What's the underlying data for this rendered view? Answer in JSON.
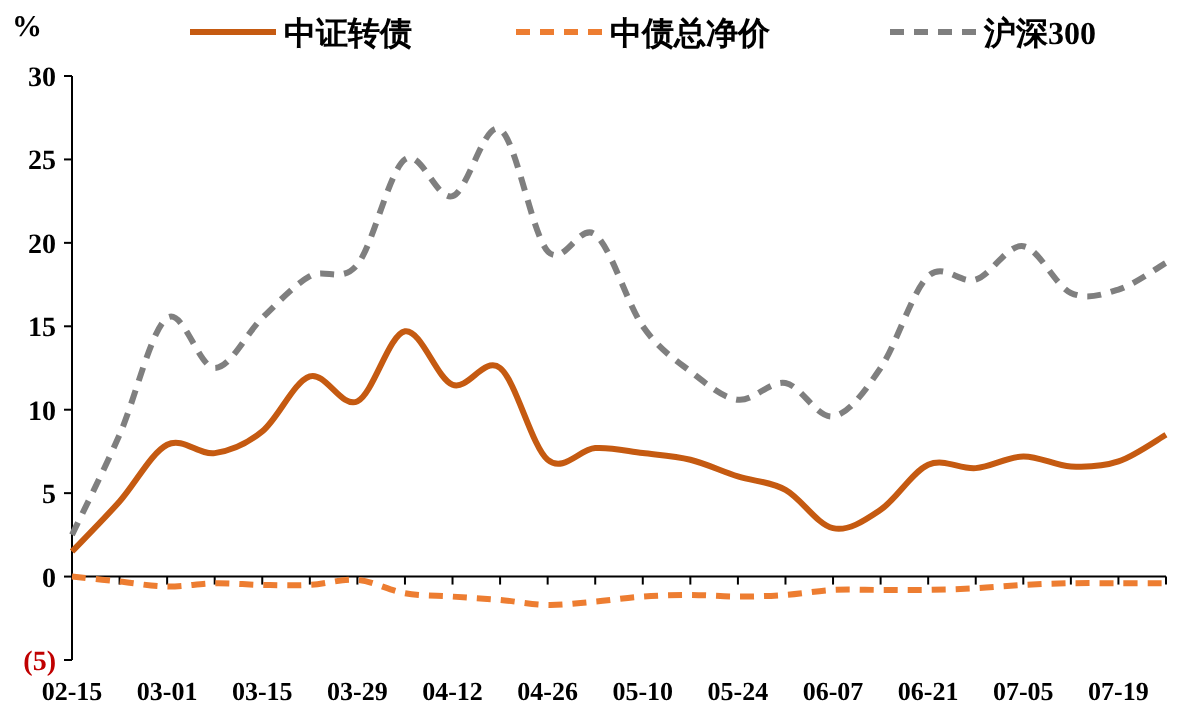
{
  "chart_data": {
    "type": "line",
    "ylabel": "%",
    "legend": "top",
    "categories": [
      "02-15",
      null,
      "03-01",
      null,
      "03-15",
      null,
      "03-29",
      null,
      "04-12",
      null,
      "04-26",
      null,
      "05-10",
      null,
      "05-24",
      null,
      "06-07",
      null,
      "06-21",
      null,
      "07-05",
      null,
      "07-19",
      null
    ],
    "ylim": [
      -5,
      30
    ],
    "yticks": [
      {
        "value": -5,
        "label": "(5)"
      },
      0,
      5,
      10,
      15,
      20,
      25,
      30
    ],
    "series": [
      {
        "name": "中证转债",
        "color": "#c55a11",
        "line_style": "solid",
        "values": [
          1.5,
          4.5,
          7.9,
          7.4,
          8.7,
          12.0,
          10.5,
          14.7,
          11.5,
          12.5,
          7.0,
          7.7,
          7.4,
          7.0,
          6.0,
          5.2,
          2.9,
          4.0,
          6.7,
          6.5,
          7.2,
          6.6,
          6.9,
          8.5
        ]
      },
      {
        "name": "中债总净价",
        "color": "#ed7d31",
        "line_style": "dashed",
        "values": [
          0,
          -0.3,
          -0.6,
          -0.4,
          -0.5,
          -0.5,
          -0.2,
          -1.0,
          -1.2,
          -1.4,
          -1.7,
          -1.5,
          -1.2,
          -1.1,
          -1.2,
          -1.1,
          -0.8,
          -0.8,
          -0.8,
          -0.7,
          -0.5,
          -0.4,
          -0.4,
          -0.4
        ]
      },
      {
        "name": "沪深300",
        "color": "#7f7f7f",
        "line_style": "dashed",
        "values": [
          2.5,
          8.5,
          15.5,
          12.5,
          15.5,
          18.0,
          18.7,
          25.0,
          22.8,
          26.8,
          19.5,
          20.5,
          15.0,
          12.3,
          10.6,
          11.6,
          9.6,
          12.5,
          18.0,
          17.8,
          19.8,
          17.0,
          17.2,
          18.8
        ]
      }
    ]
  }
}
